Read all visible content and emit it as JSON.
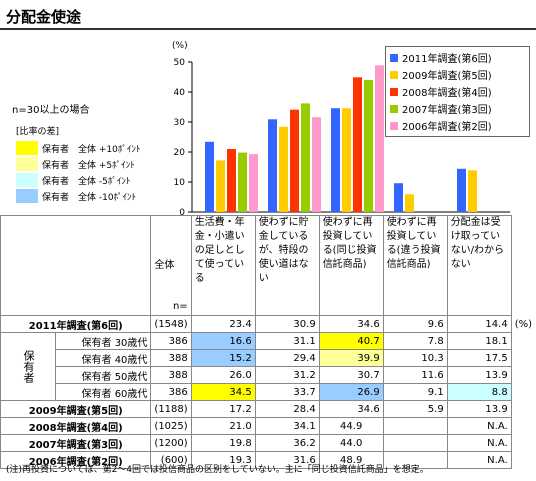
{
  "title": "分配金使途",
  "sample_note": "n=30以上の場合",
  "diff_legend": {
    "title": "[比率の差]",
    "items": [
      {
        "label": "保有者　全体 +10ﾎﾟｲﾝﾄ",
        "color": "#ffff00"
      },
      {
        "label": "保有者　全体 +5ﾎﾟｲﾝﾄ",
        "color": "#ffff99"
      },
      {
        "label": "保有者　全体 -5ﾎﾟｲﾝﾄ",
        "color": "#ccffff"
      },
      {
        "label": "保有者　全体 -10ﾎﾟｲﾝﾄ",
        "color": "#99ccff"
      }
    ]
  },
  "chart_data": {
    "type": "bar",
    "ylabel": "(%)",
    "ylim": [
      0,
      50
    ],
    "yticks": [
      0,
      10,
      20,
      30,
      40,
      50
    ],
    "categories": [
      "生活費・年金・小遣いの足しとして使っている",
      "使わずに貯金しているが、特段の使い道はない",
      "使わずに再投資している(同じ投資信託商品)",
      "使わずに再投資している(違う投資信託商品)",
      "分配金は受け取っていない/わからない"
    ],
    "series": [
      {
        "name": "2011年調査(第6回)",
        "color": "#3366ff",
        "values": [
          23.4,
          30.9,
          34.6,
          9.6,
          14.4
        ]
      },
      {
        "name": "2009年調査(第5回)",
        "color": "#ffcc00",
        "values": [
          17.2,
          28.4,
          34.6,
          5.9,
          13.9
        ]
      },
      {
        "name": "2008年調査(第4回)",
        "color": "#ff3300",
        "values": [
          21.0,
          34.1,
          44.9,
          null,
          null
        ]
      },
      {
        "name": "2007年調査(第3回)",
        "color": "#99cc00",
        "values": [
          19.8,
          36.2,
          44.0,
          null,
          null
        ]
      },
      {
        "name": "2006年調査(第2回)",
        "color": "#ff99cc",
        "values": [
          19.3,
          31.6,
          48.9,
          null,
          null
        ]
      }
    ]
  },
  "table": {
    "columns": [
      "生活費・年金・小遣いの足しとして使っている",
      "使わずに貯金しているが、特段の使い道はない",
      "使わずに再投資している(同じ投資信託商品)",
      "使わずに再投資している(違う投資信託商品)",
      "分配金は受け取っていない/わからない"
    ],
    "total_label": "全体",
    "n_label": "n=",
    "pct_label": "(%)",
    "side_label": "保有者",
    "rows": [
      {
        "label": "2011年調査(第6回)",
        "n": "(1548)",
        "values": [
          "23.4",
          "30.9",
          "34.6",
          "9.6",
          "14.4"
        ],
        "bold": true
      },
      {
        "label": "保有者 30歳代",
        "n": "386",
        "values": [
          "16.6",
          "31.1",
          "40.7",
          "7.8",
          "18.1"
        ],
        "sub": true
      },
      {
        "label": "保有者 40歳代",
        "n": "388",
        "values": [
          "15.2",
          "29.4",
          "39.9",
          "10.3",
          "17.5"
        ],
        "sub": true
      },
      {
        "label": "保有者 50歳代",
        "n": "388",
        "values": [
          "26.0",
          "31.2",
          "30.7",
          "11.6",
          "13.9"
        ],
        "sub": true
      },
      {
        "label": "保有者 60歳代",
        "n": "386",
        "values": [
          "34.5",
          "33.7",
          "26.9",
          "9.1",
          "8.8"
        ],
        "sub": true
      },
      {
        "label": "2009年調査(第5回)",
        "n": "(1188)",
        "values": [
          "17.2",
          "28.4",
          "34.6",
          "5.9",
          "13.9"
        ],
        "bold": true
      },
      {
        "label": "2008年調査(第4回)",
        "n": "(1025)",
        "values": [
          "21.0",
          "34.1",
          "44.9",
          "",
          "N.A."
        ],
        "bold": true
      },
      {
        "label": "2007年調査(第3回)",
        "n": "(1200)",
        "values": [
          "19.8",
          "36.2",
          "44.0",
          "",
          "N.A."
        ],
        "bold": true
      },
      {
        "label": "2006年調査(第2回)",
        "n": "(600)",
        "values": [
          "19.3",
          "31.6",
          "48.9",
          "",
          "N.A."
        ],
        "bold": true
      }
    ],
    "highlights": [
      [
        null,
        null,
        null,
        null,
        null
      ],
      [
        "#99ccff",
        null,
        "#ffff00",
        null,
        null
      ],
      [
        "#99ccff",
        null,
        "#ffff99",
        null,
        null
      ],
      [
        null,
        null,
        null,
        null,
        null
      ],
      [
        "#ffff00",
        null,
        "#99ccff",
        null,
        "#ccffff"
      ],
      [
        null,
        null,
        null,
        null,
        null
      ],
      [
        null,
        null,
        null,
        null,
        null
      ],
      [
        null,
        null,
        null,
        null,
        null
      ],
      [
        null,
        null,
        null,
        null,
        null
      ]
    ]
  },
  "footnote": "(注)再投資については、第2～4回では投信商品の区別をしていない。主に「同じ投資信託商品」を想定。"
}
